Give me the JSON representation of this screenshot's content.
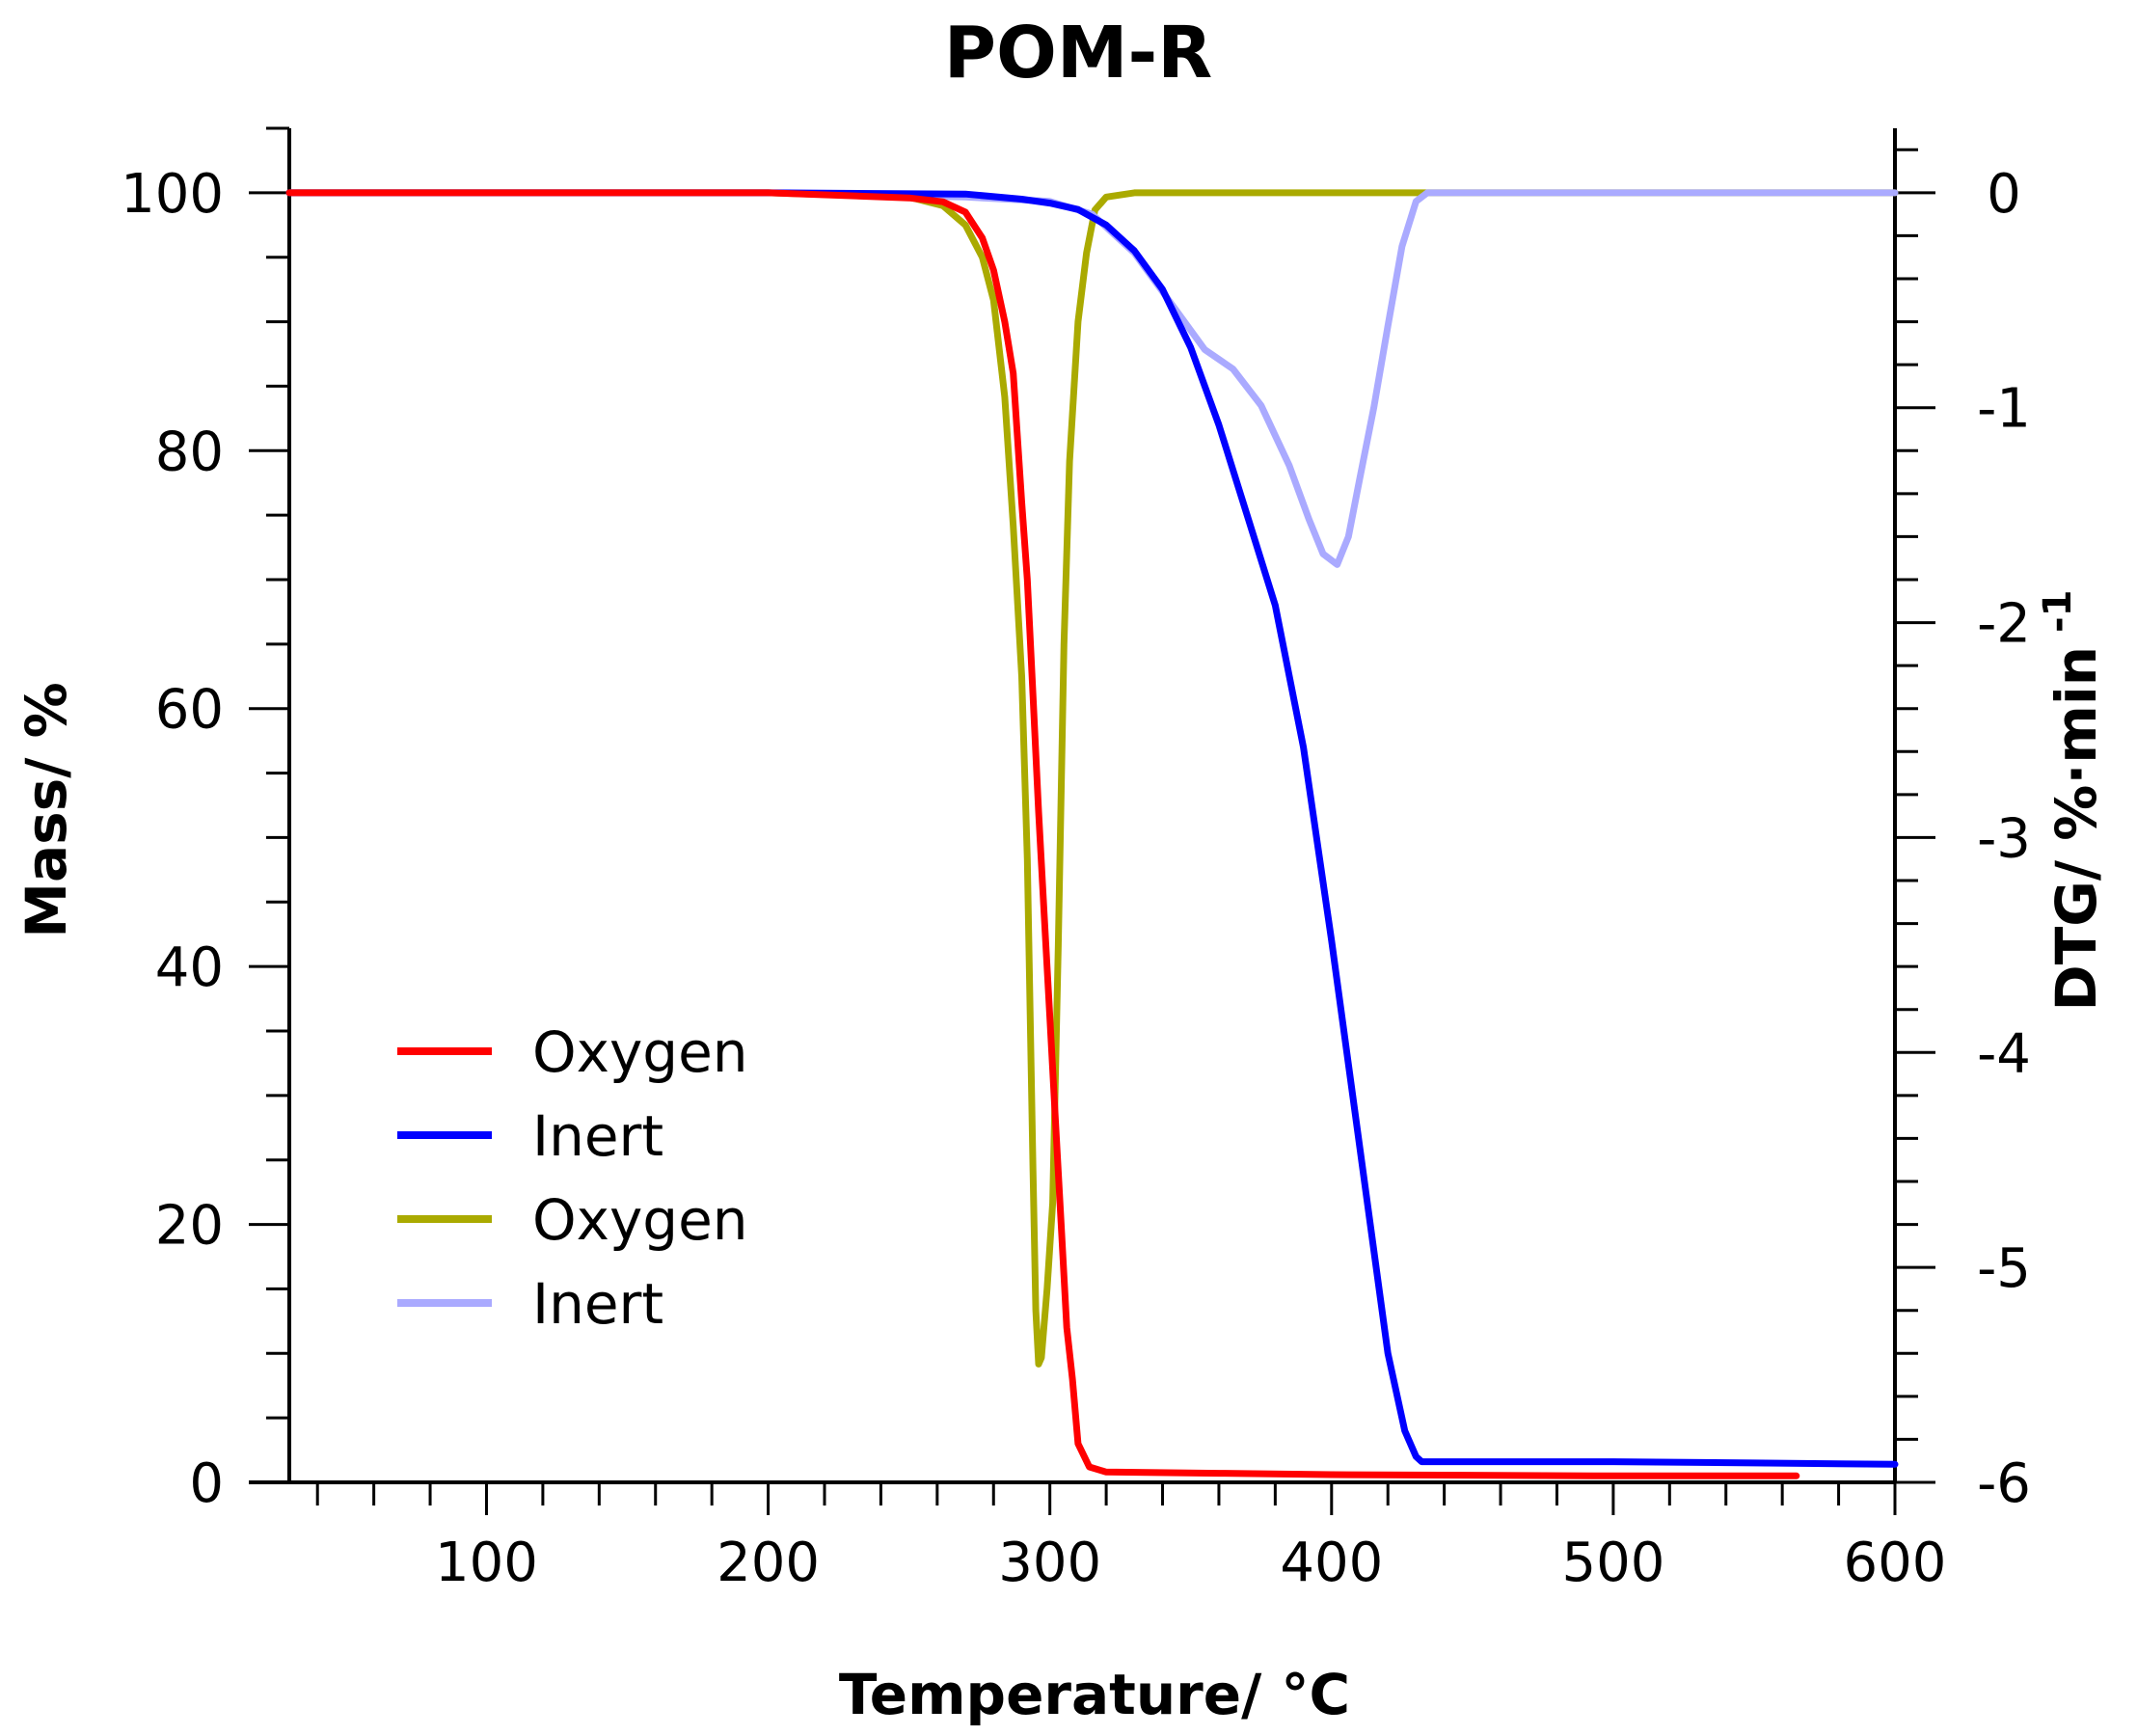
{
  "chart_data": {
    "type": "line",
    "title": "POM-R",
    "xlabel": "Temperature/ °C",
    "ylabel": "Mass/ %",
    "y2label": "DTG/ %·min",
    "y2label_superscript": "-1",
    "xlim": [
      30,
      600
    ],
    "ylim": [
      0,
      105
    ],
    "y2lim": [
      -6,
      0.3
    ],
    "x_ticks": [
      100,
      200,
      300,
      400,
      500,
      600
    ],
    "x_tick_labels": [
      "100",
      "200",
      "300",
      "400",
      "500",
      "600"
    ],
    "y_ticks": [
      0,
      20,
      40,
      60,
      80,
      100
    ],
    "y_tick_labels": [
      "0",
      "20",
      "40",
      "60",
      "80",
      "100"
    ],
    "y2_ticks": [
      0,
      -1,
      -2,
      -3,
      -4,
      -5,
      -6
    ],
    "y2_tick_labels": [
      "0",
      "-1",
      "-2",
      "-3",
      "-4",
      "-5",
      "-6"
    ],
    "grid": false,
    "legend_position": "bottom-left",
    "series": [
      {
        "name": "Oxygen",
        "axis": "left",
        "color": "#ff0000",
        "x": [
          30,
          100,
          200,
          250,
          262,
          270,
          276,
          280,
          284,
          287,
          290,
          292,
          294,
          296,
          298,
          300,
          302,
          304,
          306,
          308,
          310,
          314,
          320,
          360,
          400,
          500,
          530,
          565
        ],
        "y": [
          100,
          100,
          100,
          99.6,
          99.3,
          98.5,
          96.5,
          94,
          90,
          86,
          76,
          70,
          61,
          52,
          44,
          36,
          28,
          20,
          12,
          8,
          3,
          1.2,
          0.8,
          0.7,
          0.6,
          0.5,
          0.5,
          0.5
        ]
      },
      {
        "name": "Inert",
        "axis": "left",
        "color": "#0000ff",
        "x": [
          30,
          100,
          200,
          270,
          290,
          300,
          310,
          320,
          330,
          340,
          350,
          360,
          370,
          380,
          390,
          400,
          410,
          420,
          426,
          430,
          432,
          450,
          500,
          550,
          600
        ],
        "y": [
          100,
          100,
          100,
          99.9,
          99.5,
          99.2,
          98.7,
          97.5,
          95.5,
          92.5,
          88,
          82,
          75,
          68,
          57,
          42,
          26,
          10,
          4,
          2,
          1.6,
          1.6,
          1.6,
          1.5,
          1.4
        ]
      },
      {
        "name": "Oxygen",
        "axis": "right",
        "color": "#aaaa00",
        "x": [
          30,
          100,
          200,
          250,
          262,
          270,
          276,
          280,
          284,
          287,
          290,
          292,
          294,
          295,
          296,
          297,
          299,
          301,
          303,
          305,
          307,
          310,
          313,
          316,
          320,
          330,
          400,
          500,
          600
        ],
        "y2": [
          0,
          0,
          0,
          -0.02,
          -0.06,
          -0.15,
          -0.3,
          -0.5,
          -0.95,
          -1.55,
          -2.25,
          -3.1,
          -4.55,
          -5.2,
          -5.45,
          -5.42,
          -5.1,
          -4.7,
          -3.5,
          -2.1,
          -1.25,
          -0.6,
          -0.28,
          -0.08,
          -0.02,
          0,
          0,
          0,
          0
        ]
      },
      {
        "name": "Inert",
        "axis": "right",
        "color": "#aaaaff",
        "x": [
          30,
          100,
          200,
          270,
          300,
          315,
          330,
          345,
          355,
          365,
          375,
          385,
          392,
          397,
          402,
          406,
          410,
          415,
          420,
          425,
          430,
          434,
          450,
          500,
          550,
          600
        ],
        "y2": [
          0,
          0,
          0,
          -0.02,
          -0.04,
          -0.1,
          -0.28,
          -0.55,
          -0.73,
          -0.82,
          -0.99,
          -1.27,
          -1.52,
          -1.68,
          -1.73,
          -1.6,
          -1.33,
          -1.0,
          -0.62,
          -0.25,
          -0.04,
          0,
          0,
          0,
          0,
          0
        ]
      }
    ]
  }
}
